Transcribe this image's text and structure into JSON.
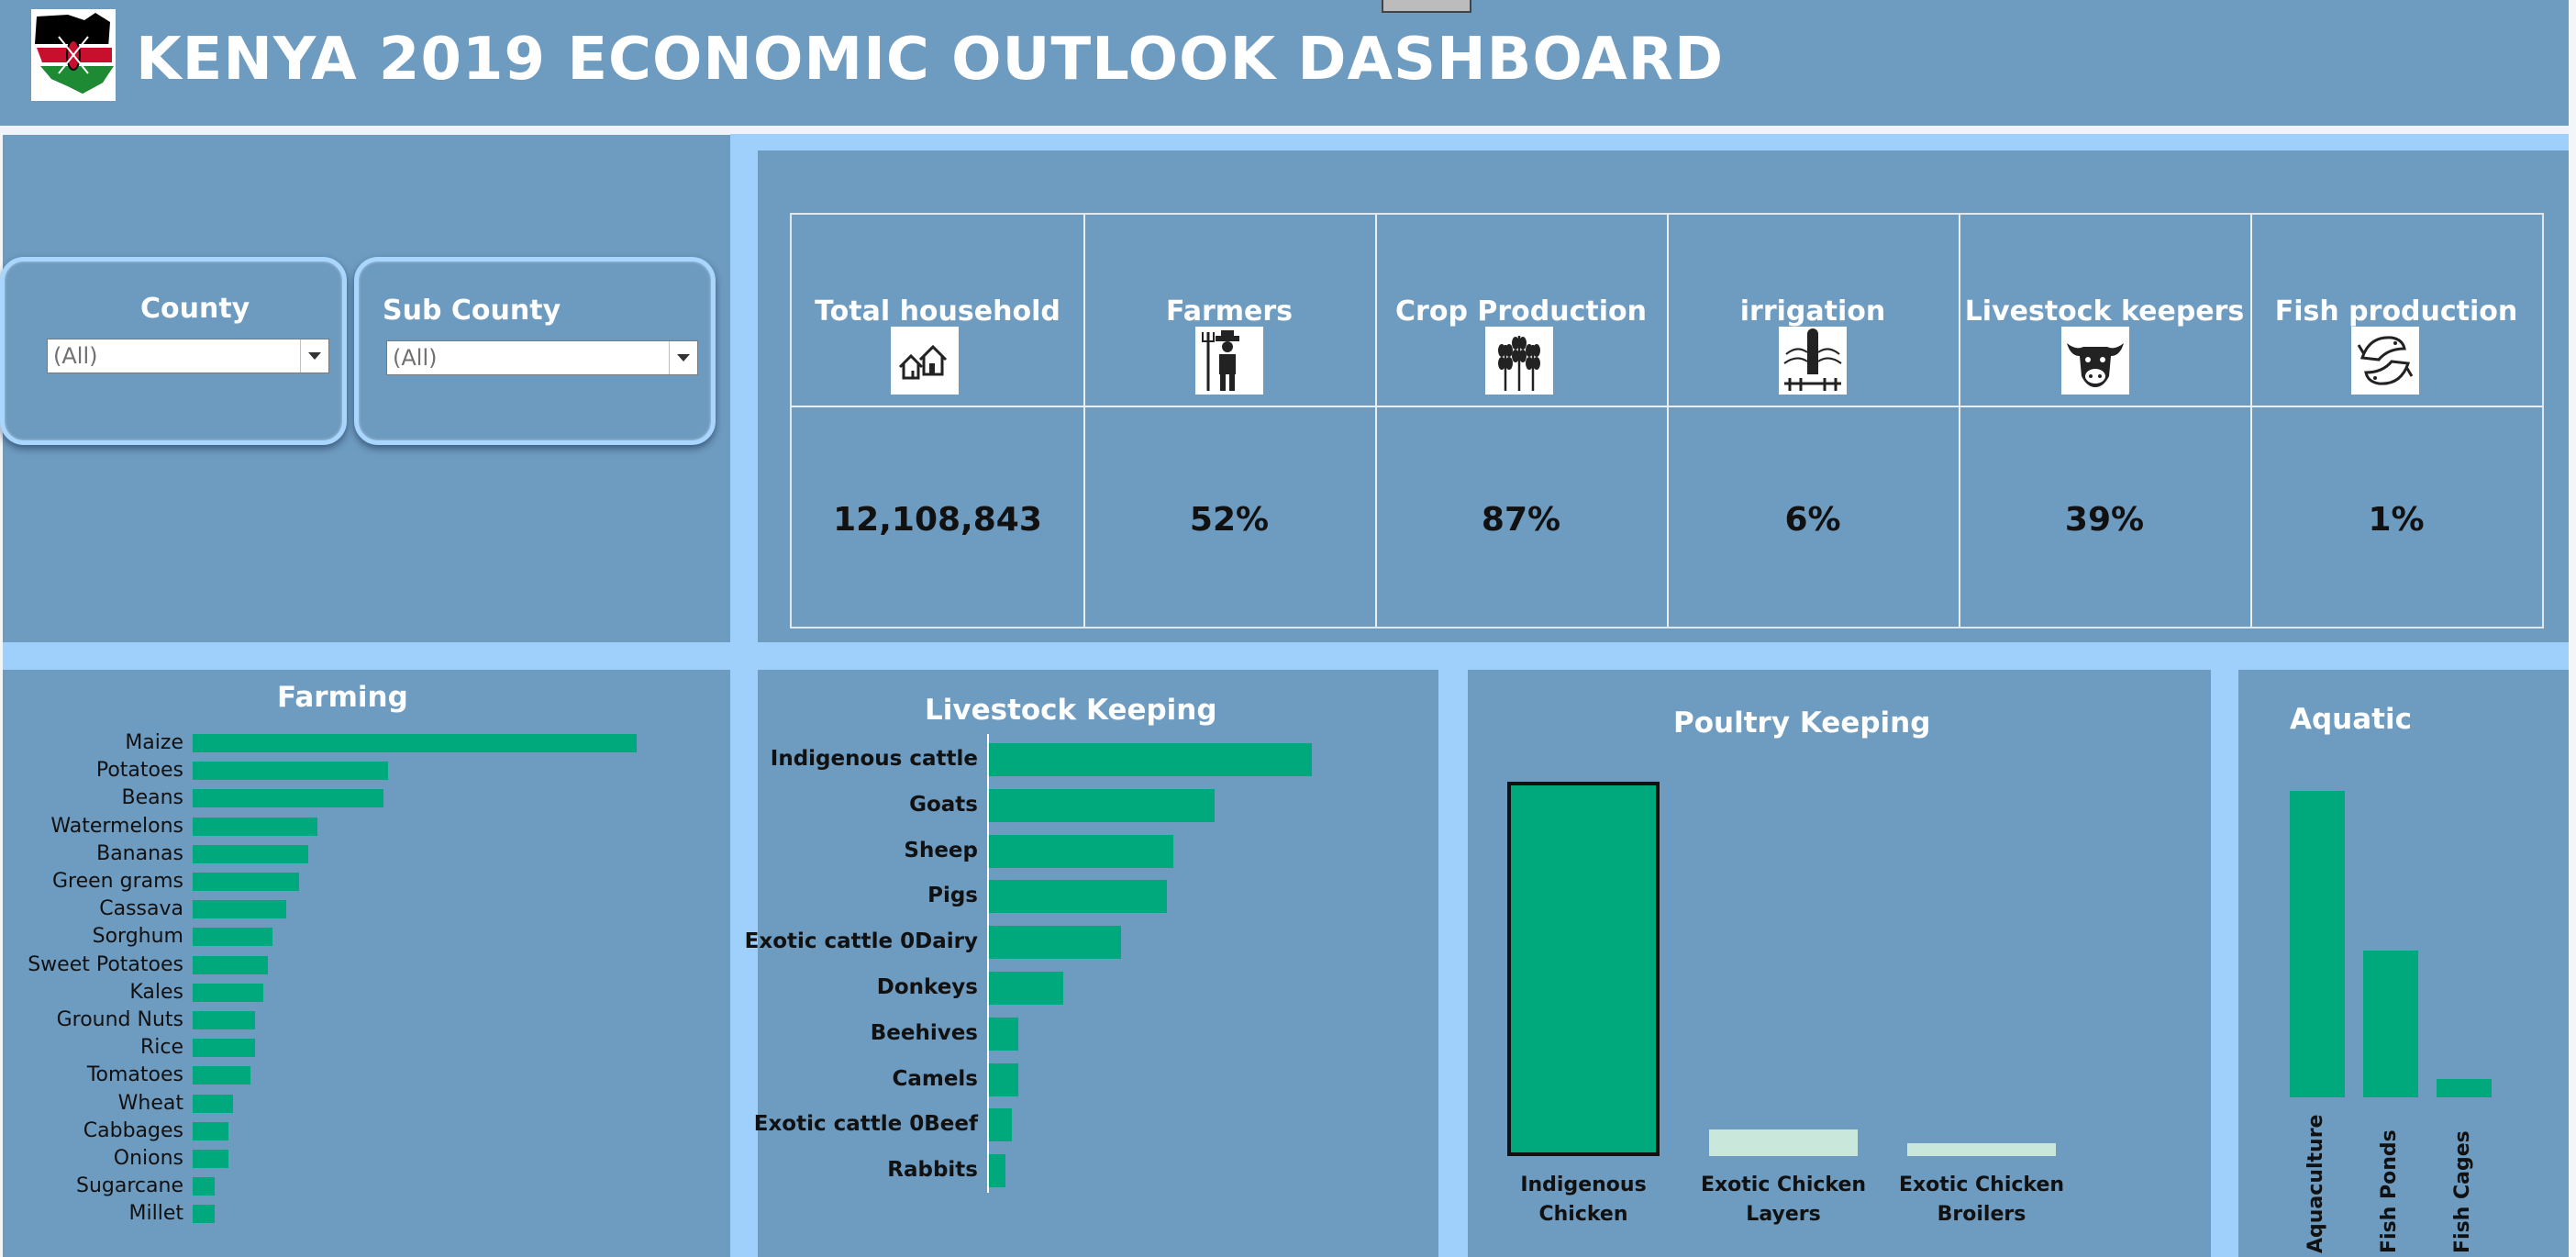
{
  "header": {
    "title": "KENYA 2019 ECONOMIC OUTLOOK DASHBOARD",
    "logo_icon": "kenya-map-flag-icon"
  },
  "filters": {
    "county": {
      "label": "County",
      "value": "(All)"
    },
    "sub_county": {
      "label": "Sub County",
      "value": "(All)"
    }
  },
  "kpis": [
    {
      "label": "Total household",
      "value": "12,108,843",
      "icon": "houses-icon"
    },
    {
      "label": "Farmers",
      "value": "52%",
      "icon": "farmer-icon"
    },
    {
      "label": "Crop  Production",
      "value": "87%",
      "icon": "wheat-icon"
    },
    {
      "label": "irrigation",
      "value": "6%",
      "icon": "sprinkler-icon"
    },
    {
      "label": "Livestock keepers",
      "value": "39%",
      "icon": "cow-icon"
    },
    {
      "label": "Fish production",
      "value": "1%",
      "icon": "fish-icon"
    }
  ],
  "colors": {
    "background": "#6e9bc0",
    "separator": "#9ed0fb",
    "bar": "#00a97c",
    "bar_light": "#c9e7da"
  },
  "chart_data": [
    {
      "type": "bar",
      "orientation": "horizontal",
      "title": "Farming",
      "categories": [
        "Maize",
        "Potatoes",
        "Beans",
        "Watermelons",
        "Bananas",
        "Green grams",
        "Cassava",
        "Sorghum",
        "Sweet Potatoes",
        "Kales",
        "Ground Nuts",
        "Rice",
        "Tomatoes",
        "Wheat",
        "Cabbages",
        "Onions",
        "Sugarcane",
        "Millet"
      ],
      "values": [
        100,
        44,
        43,
        28,
        26,
        24,
        21,
        18,
        17,
        16,
        14,
        14,
        13,
        9,
        8,
        8,
        5,
        5
      ]
    },
    {
      "type": "bar",
      "orientation": "horizontal",
      "title": "Livestock Keeping",
      "categories": [
        "Indigenous cattle",
        "Goats",
        "Sheep",
        "Pigs",
        "Exotic cattle 0Dairy",
        "Donkeys",
        "Beehives",
        "Camels",
        "Exotic cattle 0Beef",
        "Rabbits"
      ],
      "values": [
        100,
        70,
        57,
        55,
        41,
        23,
        9,
        9,
        7,
        5
      ]
    },
    {
      "type": "bar",
      "orientation": "vertical",
      "title": "Poultry Keeping",
      "categories": [
        "Indigenous Chicken",
        "Exotic Chicken Layers",
        "Exotic Chicken Broilers"
      ],
      "category_lines": [
        [
          "Indigenous",
          "Chicken"
        ],
        [
          "Exotic Chicken",
          "Layers"
        ],
        [
          "Exotic Chicken",
          "Broilers"
        ]
      ],
      "values": [
        100,
        7,
        3
      ],
      "highlighted": 0
    },
    {
      "type": "bar",
      "orientation": "vertical",
      "title": "Aquatic",
      "categories": [
        "Aquaculture",
        "Fish Ponds",
        "Fish Cages"
      ],
      "values": [
        100,
        48,
        6
      ]
    }
  ]
}
